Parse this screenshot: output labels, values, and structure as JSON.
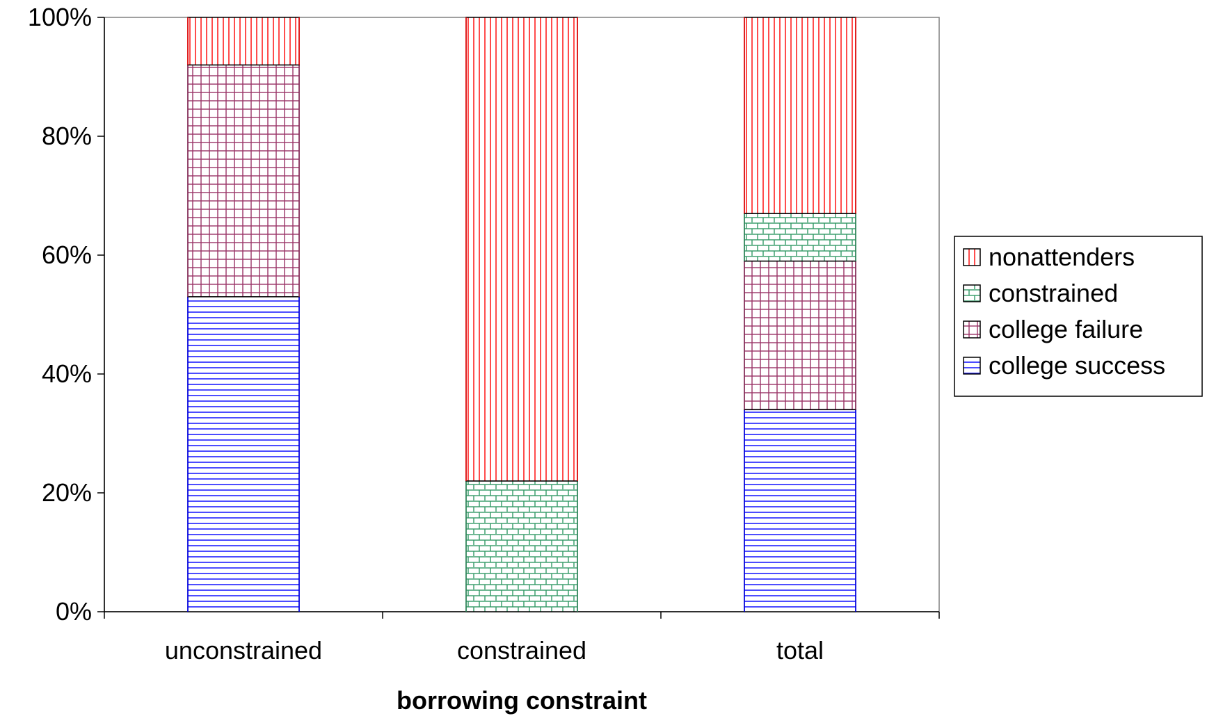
{
  "chart_data": {
    "type": "bar",
    "stacked": true,
    "percent_stacked": true,
    "categories": [
      "unconstrained",
      "constrained",
      "total"
    ],
    "series": [
      {
        "name": "college success",
        "values": [
          53,
          0,
          34
        ],
        "color": "#0000ff",
        "pattern": "horizontal-lines"
      },
      {
        "name": "college failure",
        "values": [
          39,
          0,
          25
        ],
        "color": "#993366",
        "pattern": "grid"
      },
      {
        "name": "constrained",
        "values": [
          0,
          22,
          8
        ],
        "color": "#339966",
        "pattern": "brick"
      },
      {
        "name": "nonattenders",
        "values": [
          8,
          78,
          33
        ],
        "color": "#ff0000",
        "pattern": "vertical-lines"
      }
    ],
    "title": "",
    "xlabel": "borrowing constraint",
    "ylabel": "",
    "ylim": [
      0,
      100
    ],
    "yticks": [
      "0%",
      "20%",
      "40%",
      "60%",
      "80%",
      "100%"
    ],
    "grid": false,
    "legend": {
      "position": "right",
      "order": [
        "nonattenders",
        "constrained",
        "college failure",
        "college success"
      ]
    }
  }
}
